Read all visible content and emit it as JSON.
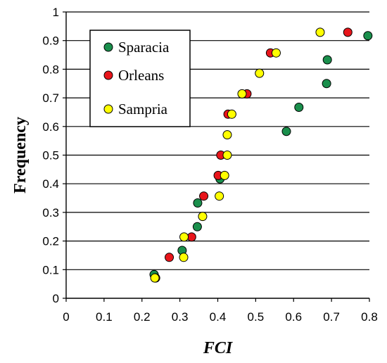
{
  "chart_data": {
    "type": "scatter",
    "title": "",
    "xlabel": "FCI",
    "ylabel": "Frequency",
    "xlim": [
      0,
      0.8
    ],
    "ylim": [
      0,
      1
    ],
    "x_ticks": [
      "0",
      "0.1",
      "0.2",
      "0.3",
      "0.4",
      "0.5",
      "0.6",
      "0.7",
      "0.8"
    ],
    "y_ticks": [
      "0",
      "0.1",
      "0.2",
      "0.3",
      "0.4",
      "0.5",
      "0.6",
      "0.7",
      "0.8",
      "0.9",
      "1"
    ],
    "grid": "horizontal",
    "legend_position": "top-left",
    "series": [
      {
        "name": "Sparacia",
        "color": "#1a8f4c",
        "points": [
          [
            0.232,
            0.083
          ],
          [
            0.306,
            0.167
          ],
          [
            0.346,
            0.25
          ],
          [
            0.347,
            0.333
          ],
          [
            0.406,
            0.417
          ],
          [
            0.581,
            0.583
          ],
          [
            0.614,
            0.667
          ],
          [
            0.687,
            0.75
          ],
          [
            0.689,
            0.833
          ],
          [
            0.796,
            0.917
          ]
        ]
      },
      {
        "name": "Orleans",
        "color": "#e8151b",
        "points": [
          [
            0.236,
            0.071
          ],
          [
            0.272,
            0.143
          ],
          [
            0.331,
            0.214
          ],
          [
            0.363,
            0.357
          ],
          [
            0.401,
            0.429
          ],
          [
            0.408,
            0.5
          ],
          [
            0.427,
            0.643
          ],
          [
            0.477,
            0.714
          ],
          [
            0.539,
            0.857
          ],
          [
            0.743,
            0.929
          ]
        ]
      },
      {
        "name": "Sampria",
        "color": "#ffff00",
        "points": [
          [
            0.234,
            0.071
          ],
          [
            0.31,
            0.143
          ],
          [
            0.311,
            0.214
          ],
          [
            0.36,
            0.286
          ],
          [
            0.404,
            0.357
          ],
          [
            0.418,
            0.429
          ],
          [
            0.425,
            0.5
          ],
          [
            0.425,
            0.571
          ],
          [
            0.437,
            0.643
          ],
          [
            0.464,
            0.714
          ],
          [
            0.51,
            0.786
          ],
          [
            0.554,
            0.857
          ],
          [
            0.67,
            0.929
          ]
        ]
      }
    ]
  }
}
